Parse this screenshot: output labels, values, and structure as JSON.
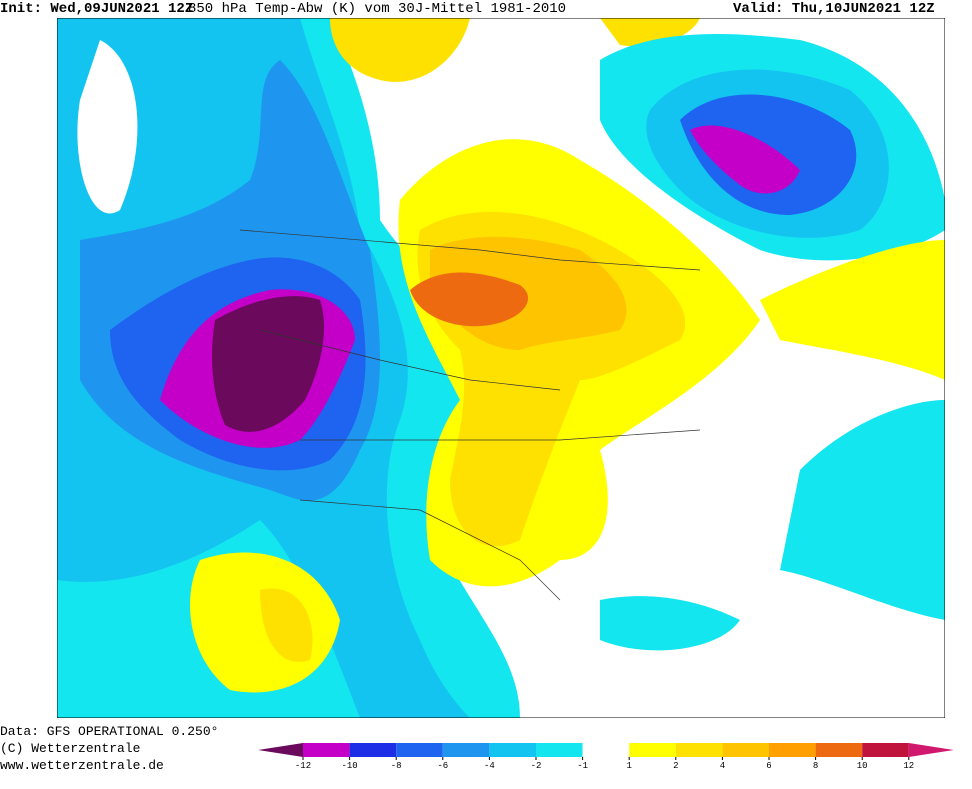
{
  "header": {
    "init": "Init: Wed,09JUN2021  12Z",
    "title": "850 hPa Temp-Abw (K) vom 30J-Mittel 1981-2010",
    "valid": "Valid: Thu,10JUN2021  12Z"
  },
  "footer": {
    "data": "Data: GFS OPERATIONAL 0.250°",
    "copyright": "(C) Wetterzentrale",
    "url": "www.wetterzentrale.de"
  },
  "colorbar": {
    "ticks": [
      -12,
      -10,
      -8,
      -6,
      -4,
      -2,
      -1,
      1,
      2,
      4,
      6,
      8,
      10,
      12
    ],
    "colors": [
      "#6b0a5c",
      "#c400c8",
      "#1e2ee6",
      "#1e64f0",
      "#1e96f0",
      "#14c4f0",
      "#14e6f0",
      "#ffffff",
      "#ffff00",
      "#ffe100",
      "#ffc400",
      "#ffa000",
      "#ee6a10",
      "#c0143c",
      "#d0186e"
    ]
  }
}
